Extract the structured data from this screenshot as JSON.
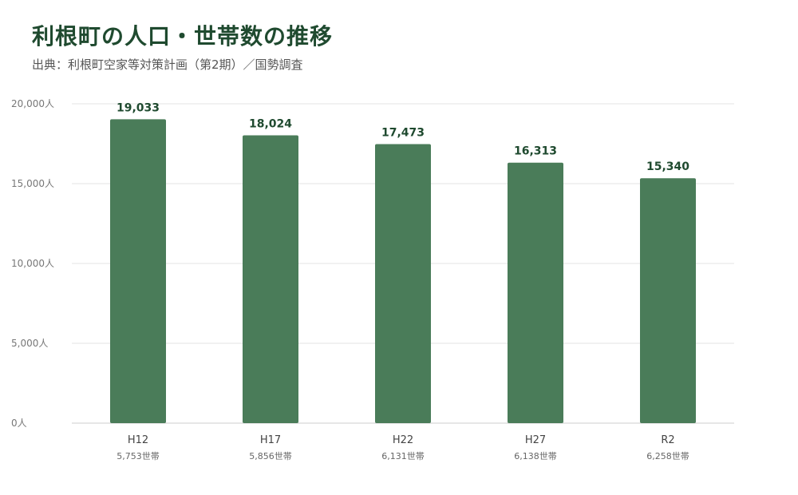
{
  "header": {
    "title": "利根町の人口・世帯数の推移",
    "source": "出典：利根町空家等対策計画（第2期）／国勢調査"
  },
  "chart_data": {
    "type": "bar",
    "categories": [
      "H12",
      "H17",
      "H22",
      "H27",
      "R2"
    ],
    "values": [
      19033,
      18024,
      17473,
      16313,
      15340
    ],
    "value_labels": [
      "19,033",
      "18,024",
      "17,473",
      "16,313",
      "15,340"
    ],
    "households": [
      "5,753世帯",
      "5,856世帯",
      "6,131世帯",
      "6,138世帯",
      "6,258世帯"
    ],
    "y_ticks": [
      0,
      5000,
      10000,
      15000,
      20000
    ],
    "y_tick_labels": [
      "0人",
      "5,000人",
      "10,000人",
      "15,000人",
      "20,000人"
    ],
    "ylim": [
      0,
      20000
    ],
    "grid": true,
    "bar_color": "#4a7c59",
    "label_color": "#1f4a2f"
  }
}
